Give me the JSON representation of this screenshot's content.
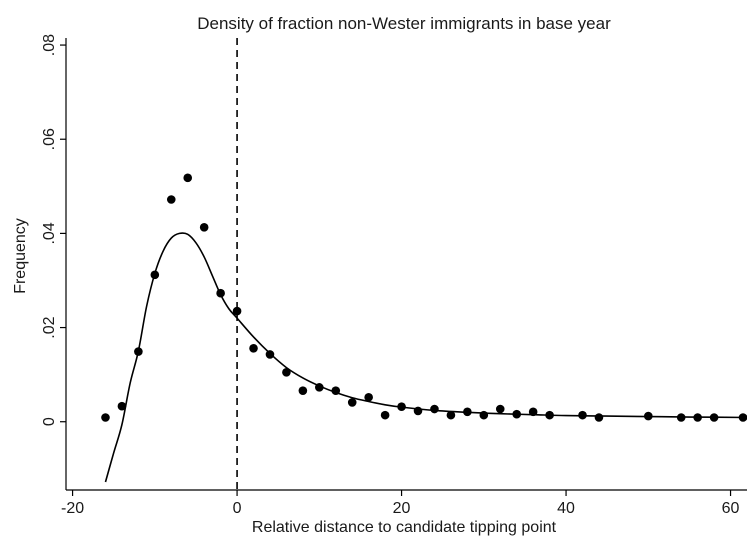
{
  "chart_data": {
    "type": "scatter",
    "title": "Density of fraction non-Wester immigrants in base year",
    "xlabel": "Relative distance to candidate tipping point",
    "ylabel": "Frequency",
    "xlim": [
      -20.8,
      62
    ],
    "ylim": [
      -0.0145,
      0.0815
    ],
    "x_ticks": [
      -20,
      0,
      20,
      40,
      60
    ],
    "x_tick_labels": [
      "-20",
      "0",
      "20",
      "40",
      "60"
    ],
    "y_ticks": [
      0,
      0.02,
      0.04,
      0.06,
      0.08
    ],
    "y_tick_labels": [
      "0",
      ".02",
      ".04",
      ".06",
      ".08"
    ],
    "grid": false,
    "reference_line": {
      "x": 0,
      "style": "dashed"
    },
    "series": [
      {
        "kind": "points",
        "x": [
          -16,
          -14,
          -12,
          -10,
          -8,
          -6,
          -4,
          -2,
          0,
          2,
          4,
          6,
          8,
          10,
          12,
          14,
          16,
          18,
          20,
          22,
          24,
          26,
          28,
          30,
          32,
          34,
          36,
          38,
          42,
          44,
          50,
          54,
          56,
          58,
          62
        ],
        "y": [
          0.0009,
          0.0033,
          0.0149,
          0.0312,
          0.0472,
          0.0518,
          0.0413,
          0.0273,
          0.0235,
          0.0156,
          0.0143,
          0.0105,
          0.0066,
          0.0073,
          0.0066,
          0.0041,
          0.0052,
          0.0014,
          0.0032,
          0.0023,
          0.0027,
          0.0014,
          0.0021,
          0.0014,
          0.0027,
          0.0016,
          0.0021,
          0.0014,
          0.0014,
          0.0009,
          0.0012,
          0.0009,
          0.0009,
          0.0009,
          0.0009
        ]
      },
      {
        "kind": "line",
        "x": [
          -16,
          -15,
          -14,
          -13,
          -12,
          -11,
          -10,
          -9,
          -8,
          -7,
          -6,
          -5,
          -4,
          -3,
          -2,
          -1,
          0,
          2,
          4,
          6,
          8,
          10,
          12,
          14,
          16,
          18,
          20,
          24,
          28,
          32,
          36,
          40,
          45,
          50,
          55,
          62
        ],
        "y": [
          -0.0128,
          -0.0066,
          -0.0006,
          0.0082,
          0.015,
          0.0245,
          0.0315,
          0.0362,
          0.039,
          0.04,
          0.0398,
          0.038,
          0.035,
          0.031,
          0.027,
          0.024,
          0.022,
          0.018,
          0.0145,
          0.0115,
          0.0093,
          0.0076,
          0.0062,
          0.0051,
          0.0043,
          0.0036,
          0.0031,
          0.0024,
          0.002,
          0.0017,
          0.0015,
          0.0013,
          0.0012,
          0.0011,
          0.001,
          0.0009
        ]
      }
    ]
  }
}
